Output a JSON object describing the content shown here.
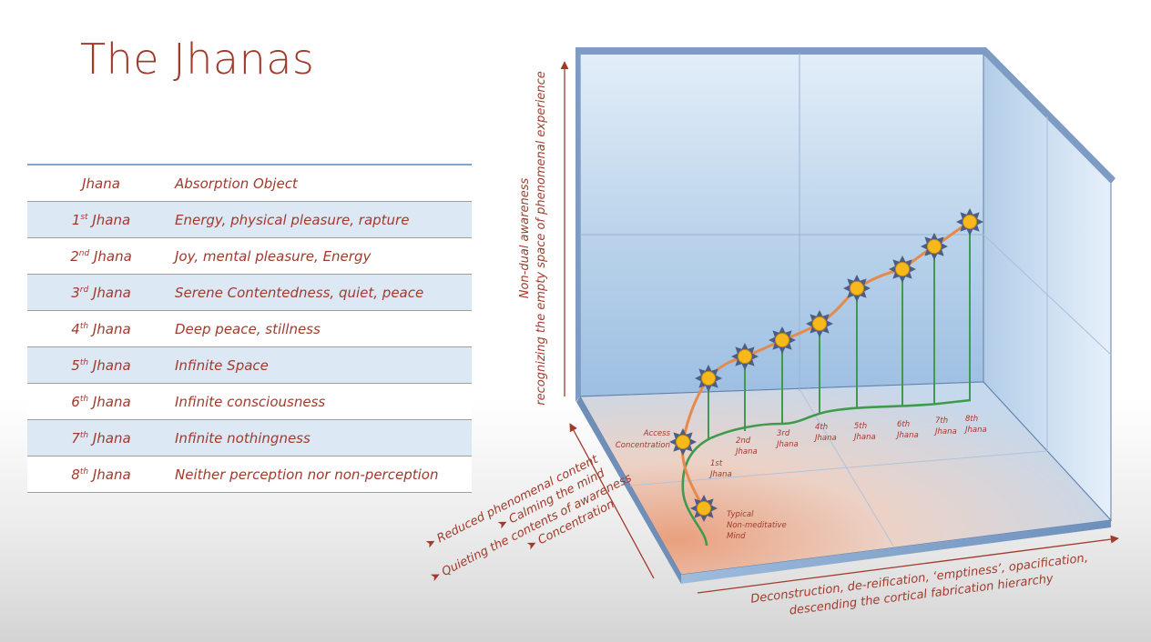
{
  "title": "The Jhanas",
  "table": {
    "headers": [
      "Jhana",
      "Absorption Object"
    ],
    "rows": [
      {
        "num": "1",
        "sup": "st",
        "label": "Jhana",
        "object": "Energy, physical pleasure, rapture"
      },
      {
        "num": "2",
        "sup": "nd",
        "label": "Jhana",
        "object": "Joy, mental pleasure, Energy"
      },
      {
        "num": "3",
        "sup": "rd",
        "label": "Jhana",
        "object": "Serene Contentedness, quiet, peace"
      },
      {
        "num": "4",
        "sup": "th",
        "label": "Jhana",
        "object": "Deep peace, stillness"
      },
      {
        "num": "5",
        "sup": "th",
        "label": "Jhana",
        "object": "Infinite Space"
      },
      {
        "num": "6",
        "sup": "th",
        "label": "Jhana",
        "object": "Infinite consciousness"
      },
      {
        "num": "7",
        "sup": "th",
        "label": "Jhana",
        "object": "Infinite nothingness"
      },
      {
        "num": "8",
        "sup": "th",
        "label": "Jhana",
        "object": "Neither perception nor non-perception"
      }
    ]
  },
  "diagram": {
    "vertical_axis": [
      "Non-dual awareness",
      "recognizing the empty space of phenomenal experience"
    ],
    "depth_axis": [
      "Reduced phenomenal content",
      "Calming the mind",
      "Quieting the contents of awareness",
      "Concentration"
    ],
    "horizontal_axis": [
      "Deconstruction, de-reification, ‘emptiness’, opacification,",
      "descending the cortical fabrication hierarchy"
    ],
    "node_labels": {
      "typical": [
        "Typical",
        "Non-meditative",
        "Mind"
      ],
      "access": [
        "Access",
        "Concentration"
      ],
      "j1": [
        "1st",
        "Jhana"
      ],
      "j2": [
        "2nd",
        "Jhana"
      ],
      "j3": [
        "3rd",
        "Jhana"
      ],
      "j4": [
        "4th",
        "Jhana"
      ],
      "j5": [
        "5th",
        "Jhana"
      ],
      "j6": [
        "6th",
        "Jhana"
      ],
      "j7": [
        "7th",
        "Jhana"
      ],
      "j8": [
        "8th",
        "Jhana"
      ]
    },
    "colors": {
      "accent_text": "#a23a2c",
      "orange_path": "#e58a4a",
      "green_path": "#3f9a4e",
      "node_fill": "#f7b81c",
      "node_spikes": "#4d5e86"
    }
  }
}
